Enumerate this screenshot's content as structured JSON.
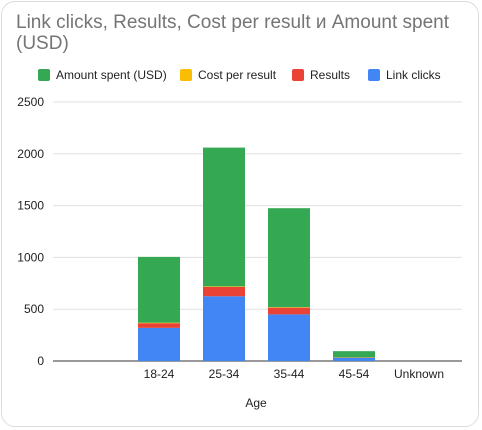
{
  "chart_data": {
    "type": "bar",
    "stacked": true,
    "title": "Link clicks, Results, Cost per result и Amount spent (USD)",
    "xlabel": "Age",
    "ylabel": "",
    "ylim": [
      0,
      2500
    ],
    "yticks": [
      0,
      500,
      1000,
      1500,
      2000,
      2500
    ],
    "grid": true,
    "legend_position": "top",
    "categories": [
      "18-24",
      "25-34",
      "35-44",
      "45-54",
      "Unknown"
    ],
    "series": [
      {
        "name": "Link clicks",
        "color": "#4285f4",
        "values": [
          320,
          625,
          450,
          30,
          0
        ]
      },
      {
        "name": "Results",
        "color": "#ea4335",
        "values": [
          45,
          90,
          65,
          3,
          0
        ]
      },
      {
        "name": "Cost per result",
        "color": "#fbbc04",
        "values": [
          5,
          5,
          5,
          2,
          0
        ]
      },
      {
        "name": "Amount spent (USD)",
        "color": "#34a853",
        "values": [
          635,
          1340,
          955,
          60,
          0
        ]
      }
    ],
    "legend_order": [
      "Amount spent (USD)",
      "Cost per result",
      "Results",
      "Link clicks"
    ]
  }
}
